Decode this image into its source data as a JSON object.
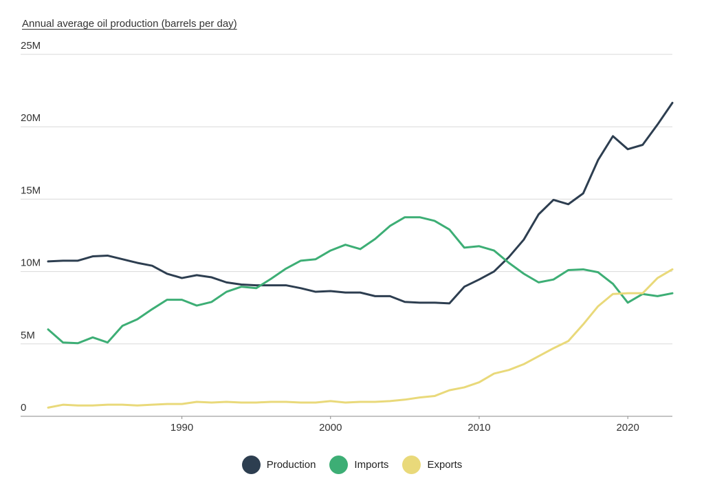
{
  "chart_data": {
    "type": "line",
    "title": "Annual average oil production (barrels per day)",
    "xlabel": "",
    "ylabel": "",
    "xlim": [
      1981,
      2023
    ],
    "ylim": [
      0,
      25000000
    ],
    "x_ticks": [
      1990,
      2000,
      2010,
      2020
    ],
    "x_tick_labels": [
      "1990",
      "2000",
      "2010",
      "2020"
    ],
    "y_ticks": [
      0,
      5000000,
      10000000,
      15000000,
      20000000,
      25000000
    ],
    "y_tick_labels": [
      "0",
      "5M",
      "10M",
      "15M",
      "20M",
      "25M"
    ],
    "grid": "horizontal",
    "legend_position": "bottom-center",
    "x": [
      1981,
      1982,
      1983,
      1984,
      1985,
      1986,
      1987,
      1988,
      1989,
      1990,
      1991,
      1992,
      1993,
      1994,
      1995,
      1996,
      1997,
      1998,
      1999,
      2000,
      2001,
      2002,
      2003,
      2004,
      2005,
      2006,
      2007,
      2008,
      2009,
      2010,
      2011,
      2012,
      2013,
      2014,
      2015,
      2016,
      2017,
      2018,
      2019,
      2020,
      2021,
      2022,
      2023
    ],
    "series": [
      {
        "name": "Production",
        "color": "#2d3e50",
        "values": [
          10700000,
          10750000,
          10750000,
          11050000,
          11100000,
          10850000,
          10600000,
          10400000,
          9850000,
          9550000,
          9750000,
          9600000,
          9250000,
          9100000,
          9050000,
          9050000,
          9050000,
          8850000,
          8600000,
          8650000,
          8550000,
          8550000,
          8300000,
          8300000,
          7900000,
          7850000,
          7850000,
          7800000,
          8950000,
          9450000,
          10000000,
          11000000,
          12200000,
          13950000,
          14950000,
          14650000,
          15400000,
          17700000,
          19350000,
          18450000,
          18750000,
          20150000,
          21650000
        ]
      },
      {
        "name": "Imports",
        "color": "#3dae75",
        "values": [
          6000000,
          5100000,
          5050000,
          5450000,
          5100000,
          6250000,
          6700000,
          7400000,
          8050000,
          8050000,
          7650000,
          7900000,
          8600000,
          8950000,
          8850000,
          9500000,
          10200000,
          10750000,
          10850000,
          11450000,
          11850000,
          11550000,
          12250000,
          13150000,
          13750000,
          13750000,
          13500000,
          12900000,
          11650000,
          11750000,
          11450000,
          10600000,
          9850000,
          9250000,
          9450000,
          10100000,
          10150000,
          9950000,
          9150000,
          7850000,
          8450000,
          8300000,
          8500000
        ]
      },
      {
        "name": "Exports",
        "color": "#e9d97a",
        "values": [
          600000,
          800000,
          750000,
          750000,
          800000,
          800000,
          750000,
          800000,
          850000,
          850000,
          1000000,
          950000,
          1000000,
          950000,
          950000,
          1000000,
          1000000,
          950000,
          950000,
          1050000,
          950000,
          1000000,
          1000000,
          1050000,
          1150000,
          1300000,
          1400000,
          1800000,
          2000000,
          2350000,
          2950000,
          3200000,
          3600000,
          4150000,
          4700000,
          5200000,
          6350000,
          7600000,
          8450000,
          8500000,
          8500000,
          9550000,
          10150000
        ]
      }
    ]
  }
}
